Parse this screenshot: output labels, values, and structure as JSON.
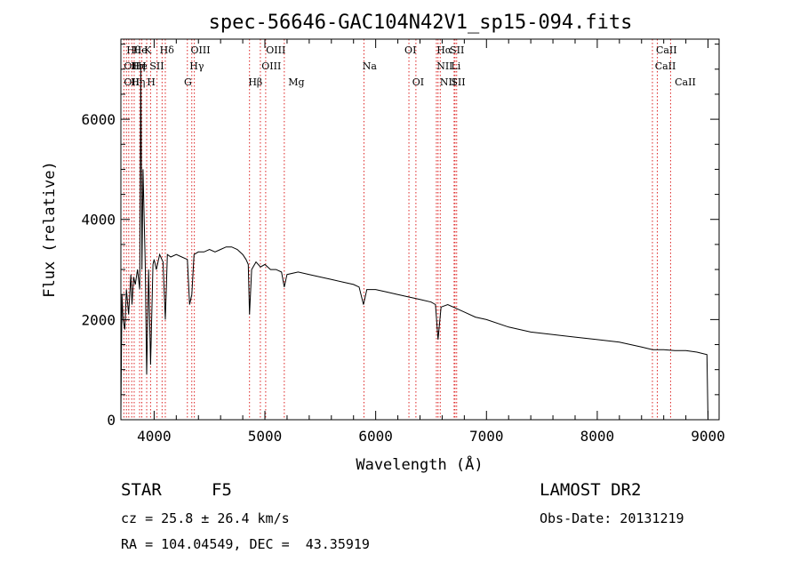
{
  "chart_data": {
    "type": "line",
    "title": "spec-56646-GAC104N42V1_sp15-094.fits",
    "xlabel": "Wavelength (Å)",
    "ylabel": "Flux (relative)",
    "xlim": [
      3700,
      9100
    ],
    "ylim": [
      0,
      7600
    ],
    "x_ticks": [
      "4000",
      "5000",
      "6000",
      "7000",
      "8000",
      "9000"
    ],
    "y_ticks": [
      "0",
      "2000",
      "4000",
      "6000"
    ],
    "grid": false,
    "series": [
      {
        "x": [
          3700,
          3710,
          3720,
          3735,
          3750,
          3770,
          3790,
          3800,
          3815,
          3830,
          3850,
          3870,
          3880,
          3890,
          3900,
          3920,
          3933,
          3950,
          3968,
          3990,
          4000,
          4020,
          4050,
          4080,
          4101,
          4120,
          4150,
          4200,
          4250,
          4300,
          4320,
          4340,
          4360,
          4400,
          4450,
          4500,
          4550,
          4600,
          4650,
          4700,
          4750,
          4800,
          4830,
          4850,
          4861,
          4880,
          4920,
          4960,
          5000,
          5050,
          5100,
          5150,
          5175,
          5200,
          5300,
          5400,
          5500,
          5600,
          5700,
          5800,
          5850,
          5890,
          5920,
          6000,
          6100,
          6200,
          6300,
          6400,
          6500,
          6540,
          6563,
          6590,
          6650,
          6700,
          6800,
          6900,
          7000,
          7200,
          7400,
          7600,
          7800,
          8000,
          8200,
          8400,
          8500,
          8600,
          8700,
          8800,
          8900,
          8990,
          9000
        ],
        "y": [
          100,
          2500,
          2000,
          1800,
          2600,
          2100,
          2900,
          2300,
          2850,
          2700,
          3000,
          2600,
          7000,
          3000,
          5000,
          3100,
          900,
          3000,
          1100,
          3100,
          3200,
          3000,
          3300,
          3150,
          2000,
          3300,
          3250,
          3300,
          3250,
          3200,
          2300,
          2500,
          3300,
          3350,
          3350,
          3400,
          3350,
          3400,
          3450,
          3450,
          3400,
          3300,
          3200,
          3100,
          2100,
          3000,
          3150,
          3050,
          3100,
          3000,
          3000,
          2950,
          2650,
          2900,
          2950,
          2900,
          2850,
          2800,
          2750,
          2700,
          2650,
          2300,
          2600,
          2600,
          2550,
          2500,
          2450,
          2400,
          2350,
          2300,
          1600,
          2250,
          2300,
          2250,
          2150,
          2050,
          2000,
          1850,
          1750,
          1700,
          1650,
          1600,
          1550,
          1450,
          1400,
          1400,
          1380,
          1380,
          1350,
          1300,
          0
        ]
      }
    ],
    "lines": [
      {
        "wave": 3727,
        "labels": [
          "OII"
        ]
      },
      {
        "wave": 3750,
        "labels": [
          "Hθ"
        ]
      },
      {
        "wave": 3771,
        "labels": [
          "Hη"
        ]
      },
      {
        "wave": 3798,
        "labels": [
          "Hη"
        ]
      },
      {
        "wave": 3820,
        "labels": [
          "He"
        ]
      },
      {
        "wave": 3869,
        "labels": [
          "NeIII"
        ]
      },
      {
        "wave": 3889,
        "labels": [
          "Hζ"
        ]
      },
      {
        "wave": 3933,
        "labels": [
          "K"
        ]
      },
      {
        "wave": 3968,
        "labels": [
          "H"
        ]
      },
      {
        "wave": 4026,
        "labels": [
          "HeI"
        ]
      },
      {
        "wave": 4072,
        "labels": [
          "SII"
        ]
      },
      {
        "wave": 4101,
        "labels": [
          "Hδ"
        ]
      },
      {
        "wave": 4300,
        "labels": [
          "G"
        ]
      },
      {
        "wave": 4340,
        "labels": [
          "Hγ"
        ]
      },
      {
        "wave": 4363,
        "labels": [
          "OIII"
        ]
      },
      {
        "wave": 4861,
        "labels": [
          "Hβ"
        ]
      },
      {
        "wave": 4959,
        "labels": [
          "OIII"
        ]
      },
      {
        "wave": 5007,
        "labels": [
          "OIII"
        ]
      },
      {
        "wave": 5175,
        "labels": [
          "Mg"
        ]
      },
      {
        "wave": 5894,
        "labels": [
          "Na"
        ]
      },
      {
        "wave": 6300,
        "labels": [
          "OI"
        ]
      },
      {
        "wave": 6363,
        "labels": [
          "OI"
        ]
      },
      {
        "wave": 6548,
        "labels": [
          "NII"
        ]
      },
      {
        "wave": 6563,
        "labels": [
          "Hα"
        ]
      },
      {
        "wave": 6583,
        "labels": [
          "NII"
        ]
      },
      {
        "wave": 6708,
        "labels": [
          "Li"
        ]
      },
      {
        "wave": 6716,
        "labels": [
          "SII"
        ]
      },
      {
        "wave": 6731,
        "labels": [
          "SII"
        ]
      },
      {
        "wave": 8498,
        "labels": [
          "CaII"
        ]
      },
      {
        "wave": 8542,
        "labels": [
          "CaII"
        ]
      },
      {
        "wave": 8662,
        "labels": [
          "CaII"
        ]
      }
    ]
  },
  "line_labels": [
    {
      "text": "Hθ",
      "row": 0,
      "wave": 3750
    },
    {
      "text": "OII",
      "row": 1,
      "wave": 3727
    },
    {
      "text": "OII",
      "row": 2,
      "wave": 3727
    },
    {
      "text": "Hη",
      "row": 1,
      "wave": 3790
    },
    {
      "text": "Hη",
      "row": 2,
      "wave": 3790
    },
    {
      "text": "He",
      "row": 0,
      "wave": 3810
    },
    {
      "text": "He",
      "row": 1,
      "wave": 3810
    },
    {
      "text": "K",
      "row": 0,
      "wave": 3910
    },
    {
      "text": "I",
      "row": 1,
      "wave": 3895
    },
    {
      "text": "H",
      "row": 2,
      "wave": 3935
    },
    {
      "text": "SII",
      "row": 1,
      "wave": 3960
    },
    {
      "text": "Hδ",
      "row": 0,
      "wave": 4050
    },
    {
      "text": "OIII",
      "row": 0,
      "wave": 4330
    },
    {
      "text": "Hγ",
      "row": 1,
      "wave": 4320
    },
    {
      "text": "G",
      "row": 2,
      "wave": 4270
    },
    {
      "text": "Hβ",
      "row": 2,
      "wave": 4850
    },
    {
      "text": "OIII",
      "row": 0,
      "wave": 5010
    },
    {
      "text": "OIII",
      "row": 1,
      "wave": 4970
    },
    {
      "text": "Mg",
      "row": 2,
      "wave": 5210
    },
    {
      "text": "Na",
      "row": 1,
      "wave": 5880
    },
    {
      "text": "OI",
      "row": 0,
      "wave": 6260
    },
    {
      "text": "OI",
      "row": 2,
      "wave": 6330
    },
    {
      "text": "Hα",
      "row": 0,
      "wave": 6550
    },
    {
      "text": "SII",
      "row": 0,
      "wave": 6670
    },
    {
      "text": "NII",
      "row": 1,
      "wave": 6550
    },
    {
      "text": "Li",
      "row": 1,
      "wave": 6680
    },
    {
      "text": "NII",
      "row": 2,
      "wave": 6580
    },
    {
      "text": "SII",
      "row": 2,
      "wave": 6680
    },
    {
      "text": "CaII",
      "row": 0,
      "wave": 8530
    },
    {
      "text": "CaII",
      "row": 1,
      "wave": 8520
    },
    {
      "text": "CaII",
      "row": 2,
      "wave": 8700
    }
  ],
  "info": {
    "object_class": "STAR",
    "subclass": "F5",
    "survey": "LAMOST DR2",
    "redshift": "cz = 25.8 ± 26.4 km/s",
    "obs_date": "Obs-Date: 20131219",
    "coords": "RA = 104.04549, DEC =  43.35919"
  }
}
